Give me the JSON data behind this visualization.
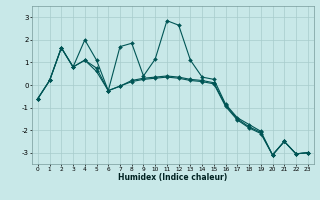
{
  "xlabel": "Humidex (Indice chaleur)",
  "bg_color": "#c8e8e8",
  "grid_color": "#a8cccc",
  "line_color": "#005555",
  "x_values": [
    0,
    1,
    2,
    3,
    4,
    5,
    6,
    7,
    8,
    9,
    10,
    11,
    12,
    13,
    14,
    15,
    16,
    17,
    18,
    19,
    20,
    21,
    22,
    23
  ],
  "line1": [
    -0.6,
    0.2,
    1.65,
    0.8,
    2.0,
    1.1,
    -0.25,
    1.7,
    1.85,
    0.4,
    1.15,
    2.85,
    2.65,
    1.1,
    0.35,
    0.25,
    -0.85,
    -1.45,
    -1.75,
    -2.05,
    -3.1,
    -2.5,
    -3.05,
    -3.0
  ],
  "line2": [
    -0.6,
    0.2,
    1.65,
    0.8,
    1.1,
    0.75,
    -0.25,
    -0.05,
    0.2,
    0.3,
    0.35,
    0.4,
    0.35,
    0.25,
    0.2,
    0.1,
    -0.9,
    -1.5,
    -1.85,
    -2.1,
    -3.1,
    -2.5,
    -3.05,
    -3.0
  ],
  "line3": [
    -0.6,
    0.2,
    1.65,
    0.8,
    1.1,
    0.6,
    -0.25,
    -0.05,
    0.15,
    0.25,
    0.3,
    0.35,
    0.3,
    0.2,
    0.15,
    0.05,
    -0.95,
    -1.55,
    -1.9,
    -2.15,
    -3.1,
    -2.5,
    -3.05,
    -3.0
  ],
  "ylim": [
    -3.5,
    3.5
  ],
  "xlim": [
    -0.5,
    23.5
  ],
  "yticks": [
    -3,
    -2,
    -1,
    0,
    1,
    2,
    3
  ],
  "xticks": [
    0,
    1,
    2,
    3,
    4,
    5,
    6,
    7,
    8,
    9,
    10,
    11,
    12,
    13,
    14,
    15,
    16,
    17,
    18,
    19,
    20,
    21,
    22,
    23
  ]
}
